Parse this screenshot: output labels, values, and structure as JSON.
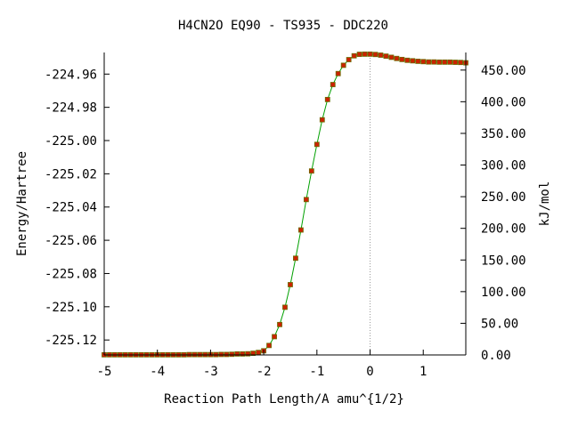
{
  "chart_data": {
    "type": "line",
    "title": "H4CN2O   EQ90 - TS935 - DDC220",
    "xlabel": "Reaction Path Length/A amu^{1/2}",
    "ylabel_left": "Energy/Hartree",
    "ylabel_right": "kJ/mol",
    "xlim": [
      -5,
      1.8
    ],
    "ylim_left": [
      -225.129,
      -224.947
    ],
    "ylim_right": [
      0,
      477.8
    ],
    "x_ticks": [
      -5,
      -4,
      -3,
      -2,
      -1,
      0,
      1
    ],
    "x_tick_labels": [
      "-5",
      "-4",
      "-3",
      "-2",
      "-1",
      "0",
      "1"
    ],
    "y_left_ticks": [
      -224.96,
      -224.98,
      -225.0,
      -225.02,
      -225.04,
      -225.06,
      -225.08,
      -225.1,
      -225.12
    ],
    "y_left_tick_labels": [
      "-224.96",
      "-224.98",
      "-225.00",
      "-225.02",
      "-225.04",
      "-225.06",
      "-225.08",
      "-225.10",
      "-225.12"
    ],
    "y_right_ticks": [
      0,
      50,
      100,
      150,
      200,
      250,
      300,
      350,
      400,
      450
    ],
    "y_right_tick_labels": [
      "0.00",
      "50.00",
      "100.00",
      "150.00",
      "200.00",
      "250.00",
      "300.00",
      "350.00",
      "400.00",
      "450.00"
    ],
    "vertical_reference_line_x": 0,
    "colors": {
      "line": "#00a000",
      "marker_fill": "#cc2200",
      "marker_edge": "#6b6b00",
      "reference_line": "#999999",
      "axes": "#000000"
    },
    "series": [
      {
        "x": [
          -5.0,
          -4.9,
          -4.8,
          -4.7,
          -4.6,
          -4.5,
          -4.4,
          -4.3,
          -4.2,
          -4.1,
          -4.0,
          -3.9,
          -3.8,
          -3.7,
          -3.6,
          -3.5,
          -3.4,
          -3.3,
          -3.2,
          -3.1,
          -3.0,
          -2.9,
          -2.8,
          -2.7,
          -2.6,
          -2.5,
          -2.4,
          -2.3,
          -2.2,
          -2.1,
          -2.0,
          -1.9,
          -1.8,
          -1.7,
          -1.6,
          -1.5,
          -1.4,
          -1.3,
          -1.2,
          -1.1,
          -1.0,
          -0.9,
          -0.8,
          -0.7,
          -0.6,
          -0.5,
          -0.4,
          -0.3,
          -0.2,
          -0.1,
          0.0,
          0.1,
          0.2,
          0.3,
          0.4,
          0.5,
          0.6,
          0.7,
          0.8,
          0.9,
          1.0,
          1.1,
          1.2,
          1.3,
          1.4,
          1.5,
          1.6,
          1.7,
          1.8
        ],
        "y": [
          -225.1289,
          -225.1289,
          -225.1289,
          -225.1289,
          -225.1289,
          -225.1289,
          -225.1289,
          -225.1289,
          -225.1289,
          -225.1289,
          -225.1289,
          -225.1289,
          -225.1289,
          -225.1289,
          -225.1289,
          -225.1289,
          -225.1288,
          -225.1288,
          -225.1288,
          -225.1288,
          -225.1288,
          -225.1288,
          -225.1287,
          -225.1287,
          -225.1286,
          -225.1284,
          -225.1284,
          -225.1283,
          -225.128,
          -225.1275,
          -225.1265,
          -225.1233,
          -225.118,
          -225.1107,
          -225.1003,
          -225.0867,
          -225.0708,
          -225.0538,
          -225.0355,
          -225.0183,
          -225.0023,
          -224.9875,
          -224.9753,
          -224.9663,
          -224.9597,
          -224.9547,
          -224.9513,
          -224.949,
          -224.9481,
          -224.948,
          -224.948,
          -224.9482,
          -224.9486,
          -224.9492,
          -224.9499,
          -224.9506,
          -224.9512,
          -224.9517,
          -224.952,
          -224.9523,
          -224.9525,
          -224.9527,
          -224.9527,
          -224.9528,
          -224.9528,
          -224.9528,
          -224.9529,
          -224.953,
          -224.9532
        ]
      }
    ]
  }
}
